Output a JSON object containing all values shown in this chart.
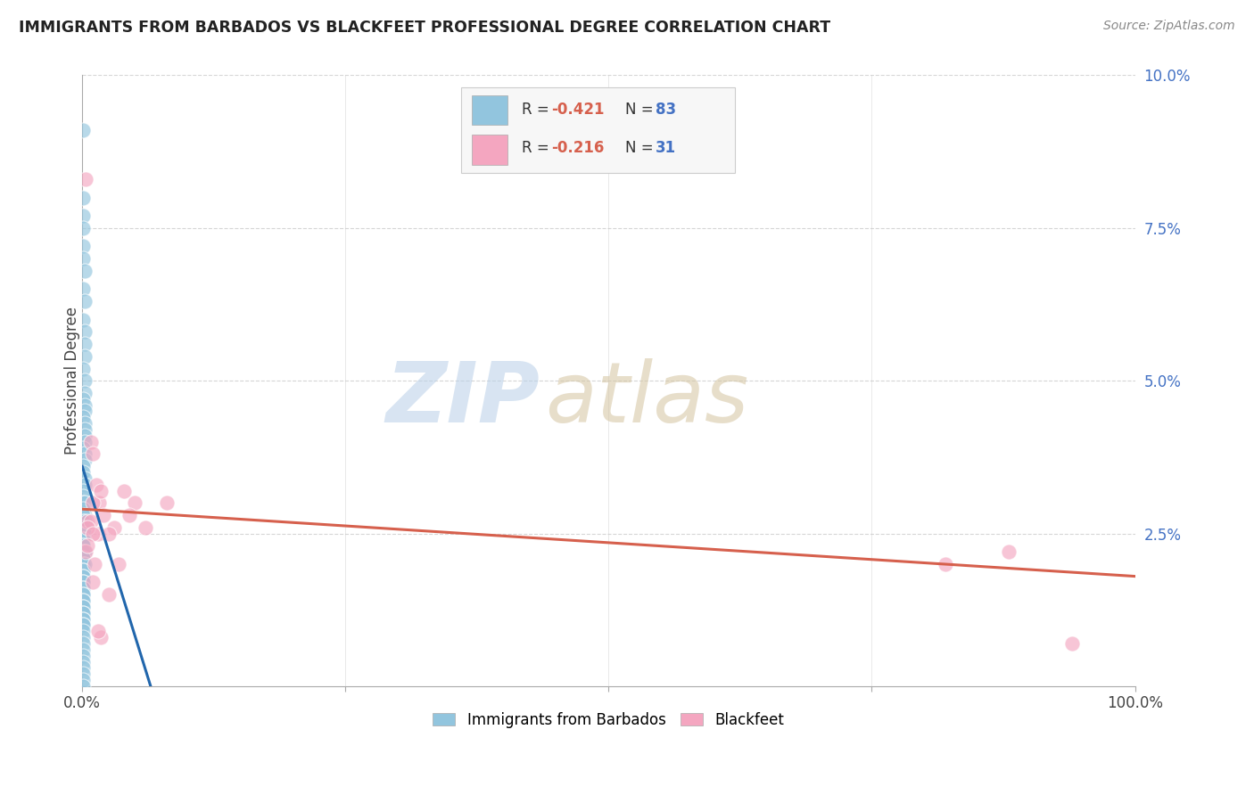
{
  "title": "IMMIGRANTS FROM BARBADOS VS BLACKFEET PROFESSIONAL DEGREE CORRELATION CHART",
  "source": "Source: ZipAtlas.com",
  "ylabel": "Professional Degree",
  "xlim": [
    0,
    1.0
  ],
  "ylim": [
    0,
    0.1
  ],
  "xtick_positions": [
    0,
    0.25,
    0.5,
    0.75,
    1.0
  ],
  "xticklabels": [
    "0.0%",
    "",
    "",
    "",
    "100.0%"
  ],
  "yticks_right": [
    0.0,
    0.025,
    0.05,
    0.075,
    0.1
  ],
  "yticklabels_right": [
    "",
    "2.5%",
    "5.0%",
    "7.5%",
    "10.0%"
  ],
  "blue_color": "#92c5de",
  "pink_color": "#f4a6c0",
  "blue_line_color": "#2166ac",
  "pink_line_color": "#d6604d",
  "legend_R_blue": "-0.421",
  "legend_N_blue": "83",
  "legend_R_pink": "-0.216",
  "legend_N_pink": "31",
  "blue_scatter_x": [
    0.001,
    0.001,
    0.001,
    0.001,
    0.001,
    0.001,
    0.002,
    0.001,
    0.002,
    0.001,
    0.002,
    0.002,
    0.002,
    0.001,
    0.002,
    0.002,
    0.001,
    0.002,
    0.002,
    0.001,
    0.002,
    0.002,
    0.002,
    0.002,
    0.001,
    0.002,
    0.002,
    0.001,
    0.001,
    0.002,
    0.002,
    0.001,
    0.001,
    0.001,
    0.002,
    0.001,
    0.002,
    0.001,
    0.002,
    0.001,
    0.001,
    0.001,
    0.002,
    0.001,
    0.001,
    0.001,
    0.001,
    0.001,
    0.002,
    0.001,
    0.001,
    0.001,
    0.002,
    0.001,
    0.001,
    0.001,
    0.001,
    0.001,
    0.001,
    0.001,
    0.001,
    0.001,
    0.001,
    0.001,
    0.001,
    0.001,
    0.001,
    0.001,
    0.001,
    0.001,
    0.001,
    0.001,
    0.001,
    0.001,
    0.001,
    0.001,
    0.001,
    0.001,
    0.001,
    0.001,
    0.001,
    0.001,
    0.001
  ],
  "blue_scatter_y": [
    0.091,
    0.08,
    0.077,
    0.075,
    0.072,
    0.07,
    0.068,
    0.065,
    0.063,
    0.06,
    0.058,
    0.056,
    0.054,
    0.052,
    0.05,
    0.048,
    0.047,
    0.046,
    0.045,
    0.044,
    0.043,
    0.042,
    0.041,
    0.04,
    0.039,
    0.038,
    0.037,
    0.036,
    0.035,
    0.034,
    0.033,
    0.032,
    0.031,
    0.03,
    0.03,
    0.029,
    0.028,
    0.028,
    0.027,
    0.027,
    0.026,
    0.025,
    0.025,
    0.024,
    0.024,
    0.023,
    0.023,
    0.022,
    0.022,
    0.021,
    0.021,
    0.02,
    0.02,
    0.019,
    0.019,
    0.018,
    0.018,
    0.017,
    0.017,
    0.016,
    0.016,
    0.015,
    0.015,
    0.014,
    0.014,
    0.013,
    0.013,
    0.012,
    0.012,
    0.011,
    0.011,
    0.01,
    0.01,
    0.009,
    0.008,
    0.007,
    0.006,
    0.005,
    0.004,
    0.003,
    0.002,
    0.001,
    0.0
  ],
  "pink_scatter_x": [
    0.003,
    0.008,
    0.01,
    0.013,
    0.016,
    0.01,
    0.02,
    0.04,
    0.005,
    0.018,
    0.008,
    0.03,
    0.015,
    0.05,
    0.035,
    0.025,
    0.08,
    0.045,
    0.005,
    0.06,
    0.003,
    0.012,
    0.01,
    0.025,
    0.88,
    0.82,
    0.01,
    0.005,
    0.018,
    0.015,
    0.94
  ],
  "pink_scatter_y": [
    0.083,
    0.04,
    0.038,
    0.033,
    0.03,
    0.03,
    0.028,
    0.032,
    0.027,
    0.032,
    0.027,
    0.026,
    0.025,
    0.03,
    0.02,
    0.025,
    0.03,
    0.028,
    0.026,
    0.026,
    0.022,
    0.02,
    0.017,
    0.015,
    0.022,
    0.02,
    0.025,
    0.023,
    0.008,
    0.009,
    0.007
  ],
  "blue_line_x": [
    0.0,
    0.065
  ],
  "blue_line_y": [
    0.036,
    0.0
  ],
  "pink_line_x": [
    0.0,
    1.0
  ],
  "pink_line_y": [
    0.029,
    0.018
  ],
  "watermark_zip": "ZIP",
  "watermark_atlas": "atlas",
  "background_color": "#ffffff",
  "grid_color": "#cccccc",
  "legend_label_blue": "Immigrants from Barbados",
  "legend_label_pink": "Blackfeet",
  "title_color": "#222222",
  "source_color": "#888888",
  "right_tick_color": "#4472c4"
}
